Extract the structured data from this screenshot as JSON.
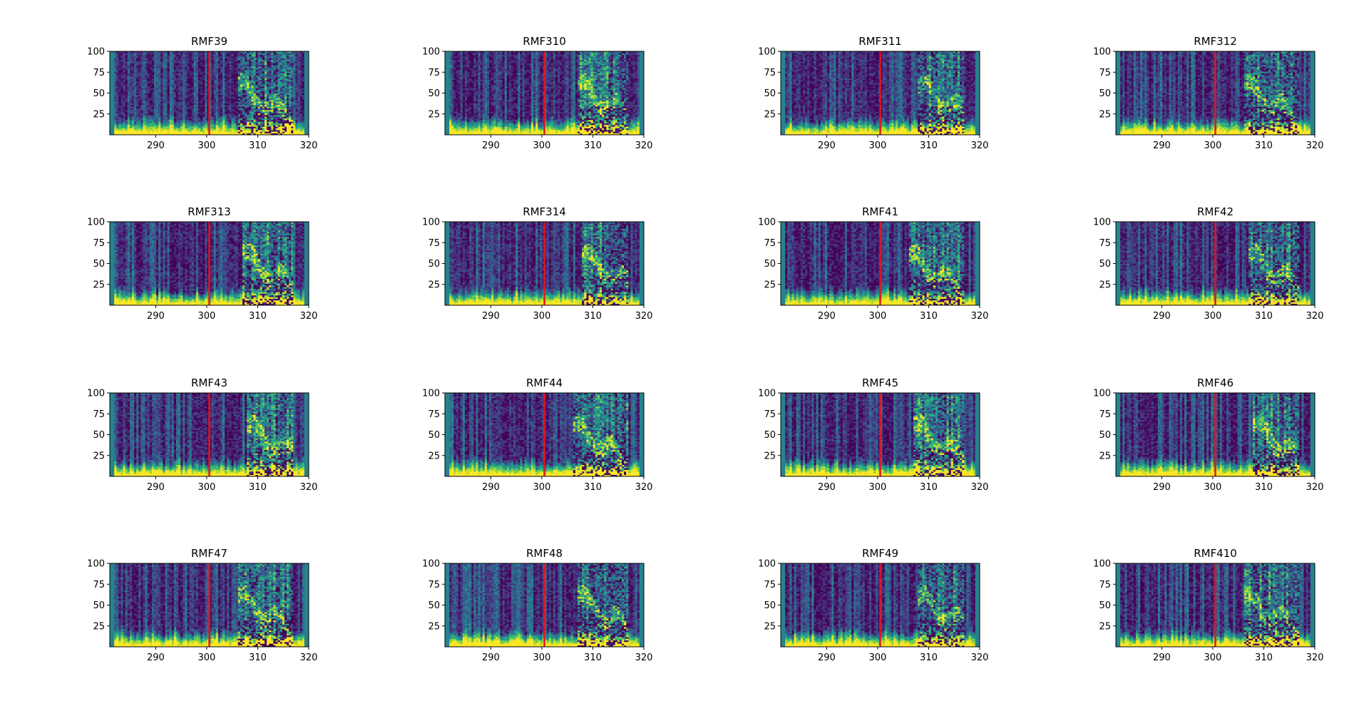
{
  "chart_data": {
    "type": "heatmap",
    "layout": "4x4 grid of time-frequency spectrograms",
    "colormap": "viridis",
    "marker_line_color": "#e8121d",
    "x": {
      "lim": [
        281,
        320
      ],
      "ticks": [
        290,
        300,
        310,
        320
      ],
      "tick_labels": [
        "290",
        "300",
        "310",
        "320"
      ]
    },
    "y": {
      "lim": [
        0,
        100
      ],
      "ticks": [
        25,
        50,
        75,
        100
      ],
      "tick_labels": [
        "25",
        "50",
        "75",
        "100"
      ]
    },
    "vertical_marker_x": 300.5,
    "panels": [
      {
        "title": "RMF39"
      },
      {
        "title": "RMF310"
      },
      {
        "title": "RMF311"
      },
      {
        "title": "RMF312"
      },
      {
        "title": "RMF313"
      },
      {
        "title": "RMF314"
      },
      {
        "title": "RMF41"
      },
      {
        "title": "RMF42"
      },
      {
        "title": "RMF43"
      },
      {
        "title": "RMF44"
      },
      {
        "title": "RMF45"
      },
      {
        "title": "RMF46"
      },
      {
        "title": "RMF47"
      },
      {
        "title": "RMF48"
      },
      {
        "title": "RMF49"
      },
      {
        "title": "RMF410"
      }
    ]
  }
}
